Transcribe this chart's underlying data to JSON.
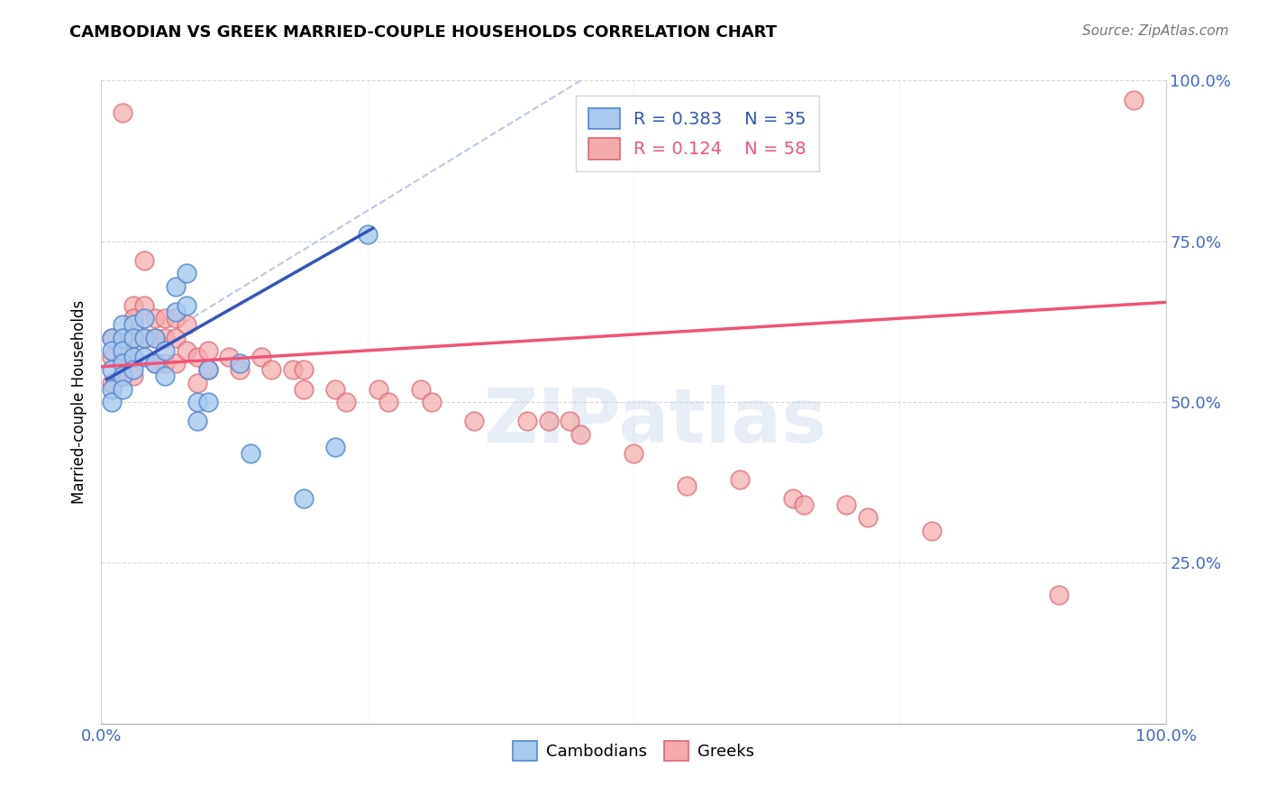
{
  "title": "CAMBODIAN VS GREEK MARRIED-COUPLE HOUSEHOLDS CORRELATION CHART",
  "source": "Source: ZipAtlas.com",
  "ylabel": "Married-couple Households",
  "xlim": [
    0,
    1
  ],
  "ylim": [
    0,
    1
  ],
  "cambodian_color": "#A8C8F0",
  "cambodian_edge": "#5588CC",
  "greek_color": "#F4AAAA",
  "greek_edge": "#DD6677",
  "trend_blue": "#3355BB",
  "trend_pink": "#EE5577",
  "ref_line_color": "#AABBDD",
  "background": "#FFFFFF",
  "watermark_text": "ZIPatlas",
  "watermark_color": "#D8E4F0",
  "legend_R_cambodian": "R = 0.383",
  "legend_N_cambodian": "N = 35",
  "legend_R_greek": "R = 0.124",
  "legend_N_greek": "N = 58",
  "legend_text_blue": "#3355BB",
  "legend_text_pink": "#EE5577",
  "tick_color": "#4466CC",
  "grid_color": "#CCCCCC",
  "cambodian_x": [
    0.01,
    0.01,
    0.01,
    0.01,
    0.01,
    0.02,
    0.02,
    0.02,
    0.02,
    0.02,
    0.02,
    0.03,
    0.03,
    0.03,
    0.03,
    0.04,
    0.04,
    0.04,
    0.05,
    0.05,
    0.06,
    0.06,
    0.07,
    0.07,
    0.08,
    0.08,
    0.09,
    0.09,
    0.1,
    0.1,
    0.13,
    0.14,
    0.19,
    0.22,
    0.25
  ],
  "cambodian_y": [
    0.6,
    0.58,
    0.55,
    0.52,
    0.5,
    0.62,
    0.6,
    0.58,
    0.56,
    0.54,
    0.52,
    0.62,
    0.6,
    0.57,
    0.55,
    0.63,
    0.6,
    0.57,
    0.6,
    0.56,
    0.58,
    0.54,
    0.68,
    0.64,
    0.7,
    0.65,
    0.5,
    0.47,
    0.55,
    0.5,
    0.56,
    0.42,
    0.35,
    0.43,
    0.76
  ],
  "greek_x": [
    0.01,
    0.01,
    0.01,
    0.02,
    0.02,
    0.02,
    0.02,
    0.03,
    0.03,
    0.03,
    0.03,
    0.03,
    0.04,
    0.04,
    0.04,
    0.05,
    0.05,
    0.05,
    0.06,
    0.06,
    0.06,
    0.07,
    0.07,
    0.07,
    0.08,
    0.08,
    0.09,
    0.09,
    0.1,
    0.1,
    0.12,
    0.13,
    0.15,
    0.16,
    0.18,
    0.19,
    0.19,
    0.22,
    0.23,
    0.26,
    0.27,
    0.3,
    0.31,
    0.35,
    0.4,
    0.42,
    0.44,
    0.45,
    0.5,
    0.55,
    0.6,
    0.65,
    0.66,
    0.7,
    0.72,
    0.78,
    0.9,
    0.97
  ],
  "greek_y": [
    0.6,
    0.57,
    0.53,
    0.95,
    0.6,
    0.57,
    0.54,
    0.65,
    0.63,
    0.6,
    0.57,
    0.54,
    0.72,
    0.65,
    0.6,
    0.63,
    0.6,
    0.56,
    0.63,
    0.6,
    0.56,
    0.63,
    0.6,
    0.56,
    0.62,
    0.58,
    0.57,
    0.53,
    0.58,
    0.55,
    0.57,
    0.55,
    0.57,
    0.55,
    0.55,
    0.55,
    0.52,
    0.52,
    0.5,
    0.52,
    0.5,
    0.52,
    0.5,
    0.47,
    0.47,
    0.47,
    0.47,
    0.45,
    0.42,
    0.37,
    0.38,
    0.35,
    0.34,
    0.34,
    0.32,
    0.3,
    0.2,
    0.97
  ]
}
